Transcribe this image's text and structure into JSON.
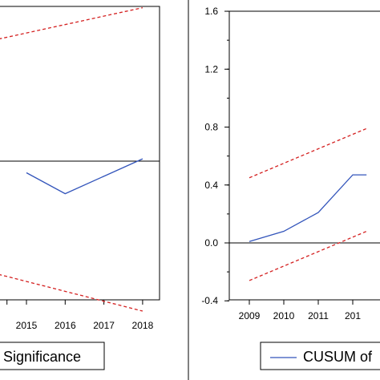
{
  "chart_data": [
    {
      "type": "line",
      "panel": "left",
      "title": "",
      "x_ticks": [
        "2015",
        "2016",
        "2017",
        "2018"
      ],
      "series": [
        {
          "name": "",
          "x": [
            2015,
            2016,
            2017,
            2018
          ],
          "values": [
            -0.1,
            -0.28,
            -0.13,
            0.02
          ],
          "color": "#3355bb",
          "style": "solid"
        },
        {
          "name": "",
          "x": [
            2014,
            2018
          ],
          "values": [
            1.03,
            1.32
          ],
          "color": "#d42020",
          "style": "dashed"
        },
        {
          "name": "",
          "x": [
            2014,
            2018
          ],
          "values": [
            -0.95,
            -1.29
          ],
          "color": "#d42020",
          "style": "dashed"
        }
      ],
      "zero_line": 0,
      "legend": {
        "label": "Significance",
        "position": "bottom"
      }
    },
    {
      "type": "line",
      "panel": "right",
      "title": "",
      "x_ticks": [
        "2009",
        "2010",
        "2011",
        "201"
      ],
      "y_ticks": [
        "1.6",
        "1.2",
        "0.8",
        "0.4",
        "0.0",
        "-0.4"
      ],
      "ylim": [
        -0.4,
        1.6
      ],
      "series": [
        {
          "name": "",
          "x": [
            2009,
            2010,
            2011,
            2012,
            2012.4
          ],
          "values": [
            0.01,
            0.08,
            0.21,
            0.47,
            0.47
          ],
          "color": "#3355bb",
          "style": "solid"
        },
        {
          "name": "",
          "x": [
            2009,
            2012.4
          ],
          "values": [
            0.45,
            0.79
          ],
          "color": "#d42020",
          "style": "dashed"
        },
        {
          "name": "",
          "x": [
            2009,
            2012.4
          ],
          "values": [
            -0.26,
            0.08
          ],
          "color": "#d42020",
          "style": "dashed"
        }
      ],
      "zero_line": 0,
      "legend": {
        "label": "CUSUM of",
        "position": "bottom"
      }
    }
  ]
}
